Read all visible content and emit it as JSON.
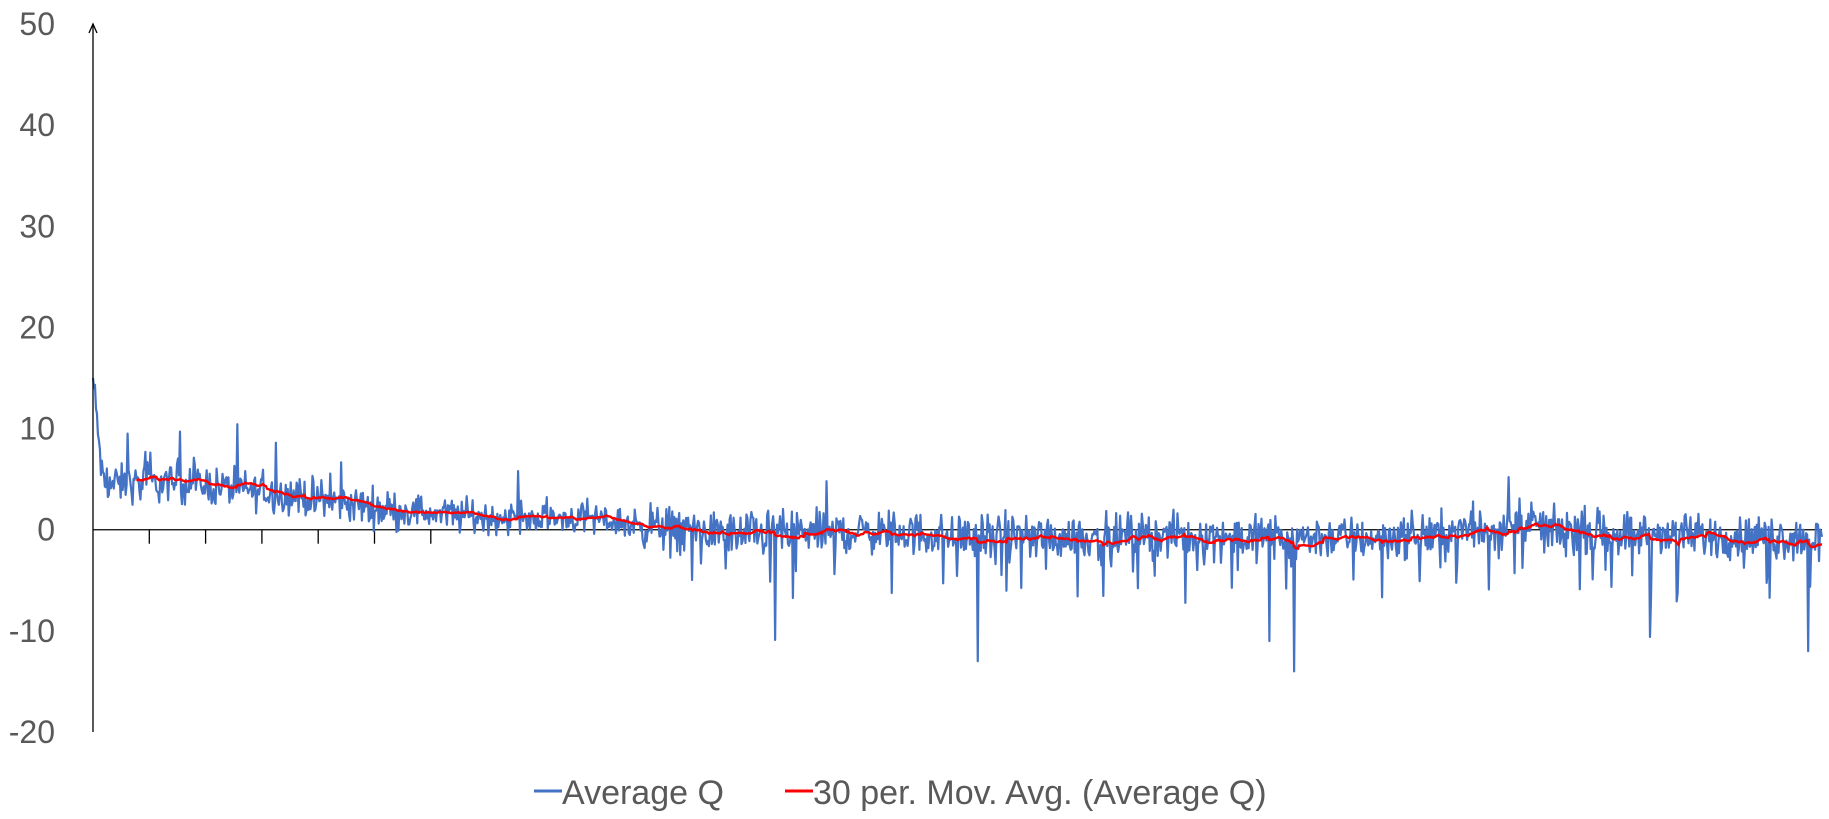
{
  "chart_data": {
    "type": "line",
    "title": "",
    "xlabel": "",
    "ylabel": "",
    "ylim": [
      -20,
      50
    ],
    "yticks": [
      50,
      40,
      30,
      20,
      10,
      0,
      -10,
      -20
    ],
    "grid": false,
    "legend_position": "bottom",
    "x_count": 1750,
    "series": [
      {
        "name": "Average Q",
        "color": "#4472C4",
        "trend": [
          [
            0,
            15
          ],
          [
            10,
            4.5
          ],
          [
            100,
            4.6
          ],
          [
            200,
            3.4
          ],
          [
            300,
            2.0
          ],
          [
            400,
            1.2
          ],
          [
            500,
            1.2
          ],
          [
            550,
            0.5
          ],
          [
            650,
            -0.4
          ],
          [
            800,
            -0.2
          ],
          [
            900,
            -0.8
          ],
          [
            1100,
            -0.6
          ],
          [
            1300,
            -0.8
          ],
          [
            1450,
            0.2
          ],
          [
            1600,
            -0.6
          ],
          [
            1749,
            -0.9
          ]
        ],
        "noise_amplitude": 2.6,
        "spikes": [
          {
            "x": 35,
            "value": 9.5
          },
          {
            "x": 88,
            "value": 9.7
          },
          {
            "x": 185,
            "value": 8.6
          },
          {
            "x": 430,
            "value": 5.8
          },
          {
            "x": 742,
            "value": 4.8
          },
          {
            "x": 1432,
            "value": 5.2
          },
          {
            "x": 690,
            "value": -10.9
          },
          {
            "x": 895,
            "value": -13.0
          },
          {
            "x": 1215,
            "value": -14.0
          },
          {
            "x": 1190,
            "value": -11.0
          },
          {
            "x": 1735,
            "value": -12.0
          },
          {
            "x": 1575,
            "value": -10.6
          }
        ]
      },
      {
        "name": "30 per. Mov. Avg. (Average Q)",
        "color": "#FF0000",
        "window": 30
      }
    ]
  },
  "legend": {
    "items": [
      {
        "label": "Average Q",
        "color": "#4472C4"
      },
      {
        "label": "30 per. Mov. Avg. (Average Q)",
        "color": "#FF0000"
      }
    ]
  }
}
